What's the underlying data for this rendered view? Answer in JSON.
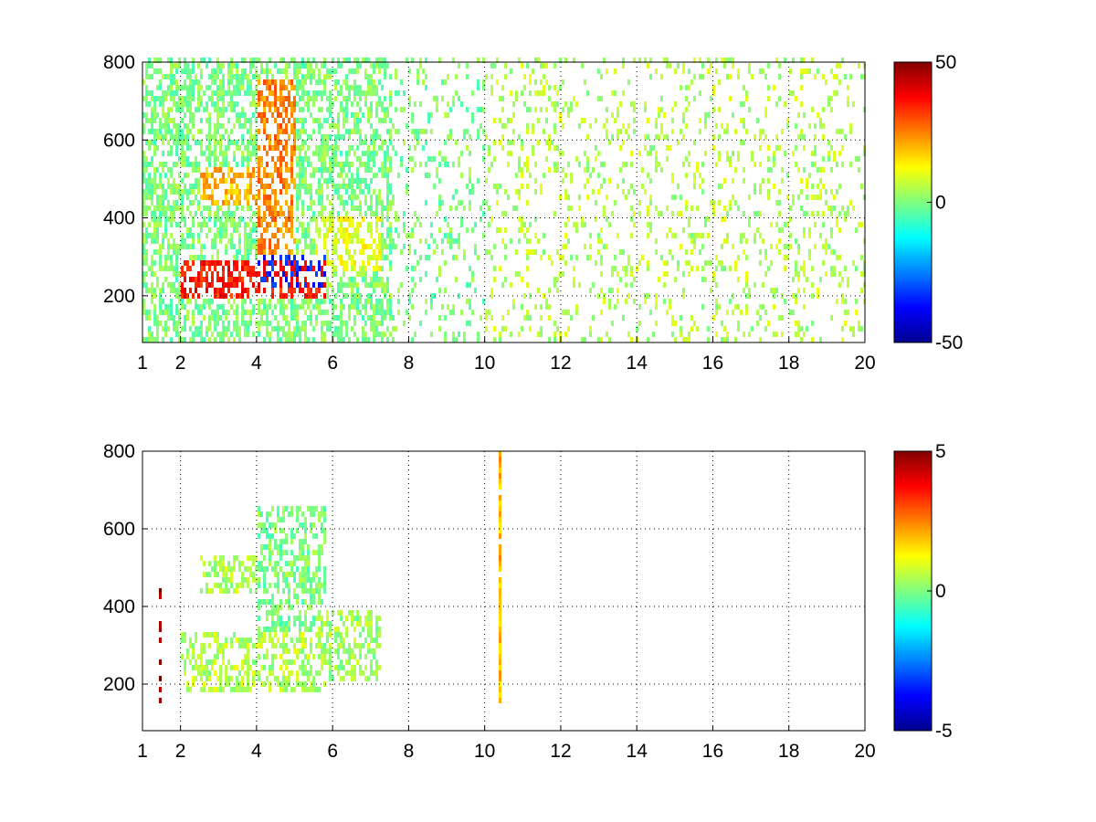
{
  "colormap": "jet",
  "colors": {
    "background": "#ffffff",
    "axes": "#000000",
    "grid": "#000000",
    "nan": "#ffffff"
  },
  "chart_data": [
    {
      "type": "heatmap",
      "title": "",
      "xlabel": "",
      "ylabel": "",
      "xlim": [
        1,
        20
      ],
      "ylim": [
        80,
        800
      ],
      "x_ticks": [
        1,
        2,
        4,
        6,
        8,
        10,
        12,
        14,
        16,
        18,
        20
      ],
      "x_tick_labels": [
        "1",
        "2",
        "4",
        "6",
        "8",
        "10",
        "12",
        "14",
        "16",
        "18",
        "20"
      ],
      "y_ticks": [
        200,
        400,
        600,
        800
      ],
      "y_tick_labels": [
        "200",
        "400",
        "600",
        "800"
      ],
      "grid": true,
      "colorbar": {
        "clim": [
          -50,
          50
        ],
        "ticks": [
          -50,
          0,
          50
        ],
        "tick_labels": [
          "-50",
          "0",
          "50"
        ]
      },
      "features": [
        {
          "x": [
            2.0,
            5.8
          ],
          "y": [
            180,
            280
          ],
          "value": 35
        },
        {
          "x": [
            4.0,
            5.8
          ],
          "y": [
            220,
            300
          ],
          "value": -35
        },
        {
          "x": [
            2.5,
            4.0
          ],
          "y": [
            430,
            520
          ],
          "value": 20
        },
        {
          "x": [
            4.0,
            5.0
          ],
          "y": [
            300,
            750
          ],
          "value": 25
        },
        {
          "x": [
            5.5,
            7.2
          ],
          "y": [
            250,
            400
          ],
          "value": 10
        },
        {
          "x": [
            1.0,
            10.0
          ],
          "y": [
            80,
            800
          ],
          "value": 0
        },
        {
          "x": [
            10.0,
            20.0
          ],
          "y": [
            80,
            800
          ],
          "value": 5
        }
      ]
    },
    {
      "type": "heatmap",
      "title": "",
      "xlabel": "",
      "ylabel": "",
      "xlim": [
        1,
        20
      ],
      "ylim": [
        80,
        800
      ],
      "x_ticks": [
        1,
        2,
        4,
        6,
        8,
        10,
        12,
        14,
        16,
        18,
        20
      ],
      "x_tick_labels": [
        "1",
        "2",
        "4",
        "6",
        "8",
        "10",
        "12",
        "14",
        "16",
        "18",
        "20"
      ],
      "y_ticks": [
        200,
        400,
        600,
        800
      ],
      "y_tick_labels": [
        "200",
        "400",
        "600",
        "800"
      ],
      "grid": true,
      "colorbar": {
        "clim": [
          -5,
          5
        ],
        "ticks": [
          -5,
          0,
          5
        ],
        "tick_labels": [
          "-5",
          "0",
          "5"
        ]
      },
      "features": [
        {
          "x": [
            2.0,
            5.8
          ],
          "y": [
            170,
            330
          ],
          "value": 0.5
        },
        {
          "x": [
            4.0,
            5.8
          ],
          "y": [
            300,
            650
          ],
          "value": 0
        },
        {
          "x": [
            2.5,
            4.0
          ],
          "y": [
            430,
            520
          ],
          "value": 0.5
        },
        {
          "x": [
            5.5,
            7.2
          ],
          "y": [
            200,
            380
          ],
          "value": 0.3
        },
        {
          "x": [
            1.4,
            1.5
          ],
          "y": [
            150,
            450
          ],
          "value": 5
        },
        {
          "x": [
            10.3,
            10.4
          ],
          "y": [
            150,
            790
          ],
          "value": 2
        }
      ]
    }
  ]
}
